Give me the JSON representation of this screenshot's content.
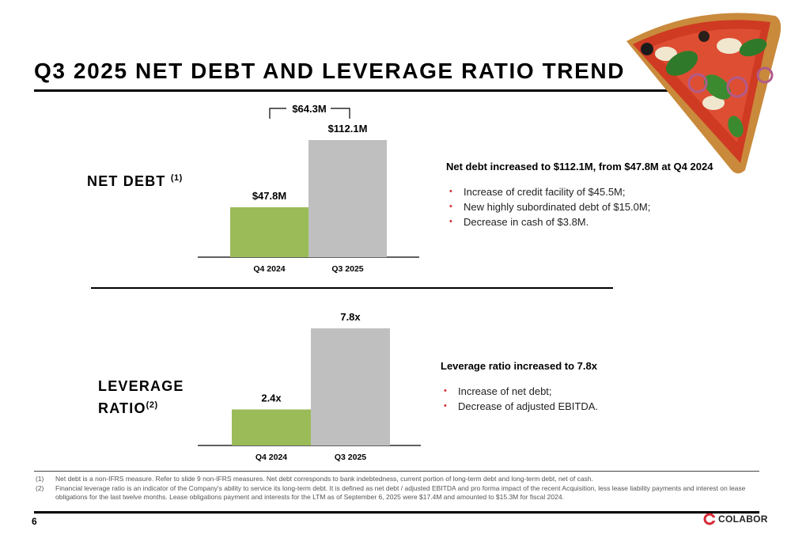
{
  "page": {
    "title": "Q3 2025 NET DEBT AND LEVERAGE RATIO TREND",
    "page_number": "6",
    "logo_text": "COLABOR"
  },
  "net_debt": {
    "label": "NET DEBT",
    "label_note": "(1)",
    "commentary": {
      "headline": "Net debt increased to $112.1M, from $47.8M at Q4 2024",
      "bullets": [
        "Increase of credit facility of $45.5M;",
        "New highly subordinated debt of $15.0M;",
        "Decrease in cash of $3.8M."
      ]
    }
  },
  "leverage": {
    "label_line1": "LEVERAGE",
    "label_line2": "RATIO",
    "label_note": "(2)",
    "commentary": {
      "headline": "Leverage ratio increased to 7.8x",
      "bullets": [
        "Increase of net debt;",
        "Decrease of adjusted EBITDA."
      ]
    }
  },
  "chart_data": [
    {
      "type": "bar",
      "categories": [
        "Q4 2024",
        "Q3 2025"
      ],
      "values": [
        47.8,
        112.1
      ],
      "value_labels": [
        "$47.8M",
        "$112.1M"
      ],
      "colors": [
        "#9bbb59",
        "#bfbfbf"
      ],
      "annotation": "$64.3M"
    },
    {
      "type": "bar",
      "categories": [
        "Q4 2024",
        "Q3 2025"
      ],
      "values": [
        2.4,
        7.8
      ],
      "value_labels": [
        "2.4x",
        "7.8x"
      ],
      "colors": [
        "#9bbb59",
        "#bfbfbf"
      ]
    }
  ],
  "footnotes": [
    {
      "num": "(1)",
      "text": "Net debt is a non-IFRS measure. Refer to slide 9 non-IFRS measures.  Net debt corresponds to bank indebtedness, current portion of long-term debt and long-term debt, net of cash."
    },
    {
      "num": "(2)",
      "text": "Financial leverage ratio is an indicator of the Company's ability to service its long-term debt. It is defined as net debt / adjusted EBITDA and pro forma impact of the recent Acquisition, less lease liability payments and interest on lease obligations for the last twelve months. Lease obligations payment and interests for the LTM as of September 6, 2025 were $17.4M and amounted to $15.3M for fiscal 2024."
    }
  ],
  "colors": {
    "accent_green": "#9bbb59",
    "bar_gray": "#bfbfbf",
    "bullet_red": "#d62b36",
    "logo_red": "#d62b36"
  },
  "icons": [
    "pizza-slice-image",
    "colabor-logo-icon"
  ]
}
